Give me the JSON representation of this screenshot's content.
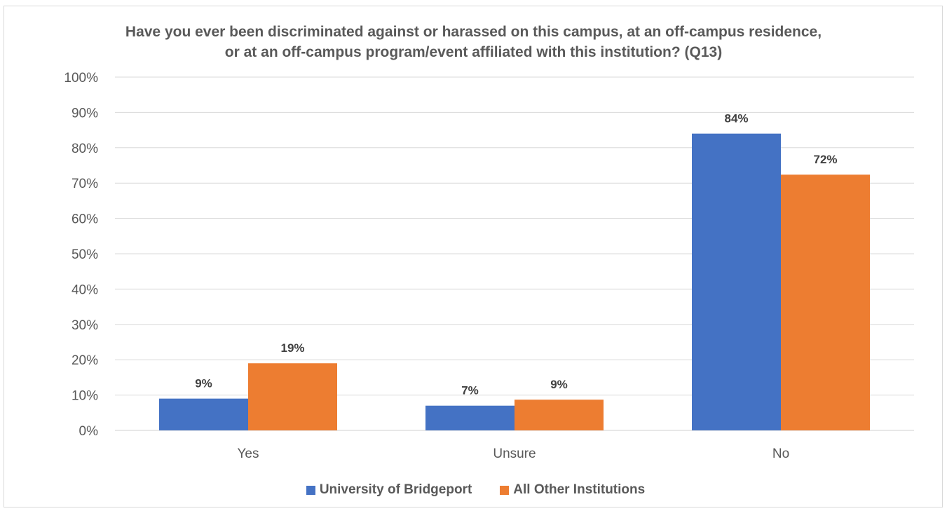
{
  "chart_data": {
    "type": "bar",
    "title": "Have you ever been discriminated against or harassed on this campus, at an off-campus residence, or at an off-campus program/event affiliated with this institution? (Q13)",
    "title_lines": [
      "Have you ever been discriminated against or harassed on this campus, at an off-campus residence,",
      "or at an off-campus program/event affiliated with this institution? (Q13)"
    ],
    "categories": [
      "Yes",
      "Unsure",
      "No"
    ],
    "series": [
      {
        "name": "University of Bridgeport",
        "color": "#4472c4",
        "values": [
          9,
          7,
          84
        ],
        "labels": [
          "9%",
          "7%",
          "84%"
        ]
      },
      {
        "name": "All Other Institutions",
        "color": "#ed7d31",
        "values": [
          19,
          8.7,
          72.4
        ],
        "labels": [
          "19%",
          "9%",
          "72%"
        ]
      }
    ],
    "ylim": [
      0,
      100
    ],
    "yticks": [
      "0%",
      "10%",
      "20%",
      "30%",
      "40%",
      "50%",
      "60%",
      "70%",
      "80%",
      "90%",
      "100%"
    ],
    "xlabel": "",
    "ylabel": "",
    "grid": true,
    "legend_position": "bottom"
  }
}
